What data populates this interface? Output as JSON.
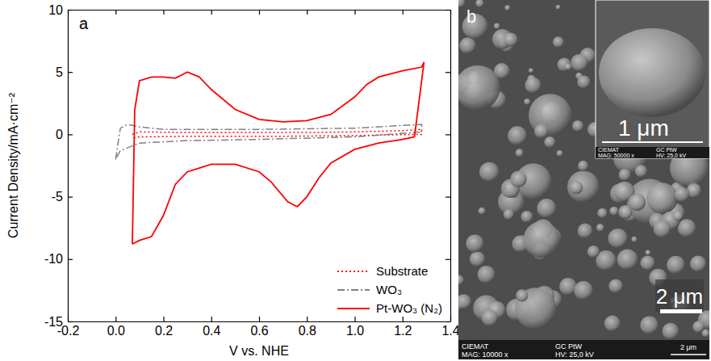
{
  "chart_data": {
    "type": "line",
    "panel_label": "a",
    "x_label": "V vs. NHE",
    "y_label": "Current Density/mA·cm⁻²",
    "xlim": [
      -0.2,
      1.4
    ],
    "xticks": [
      -0.2,
      {
        "value": 0.0,
        "label": "0.0"
      },
      0.2,
      0.4,
      0.6,
      0.8,
      {
        "value": 1.0,
        "label": "1.0"
      },
      1.2,
      1.4
    ],
    "ylim": [
      -15,
      10
    ],
    "yticks": [
      -15,
      -10,
      -5,
      0,
      5,
      10
    ],
    "grid": false,
    "legend": "lower right",
    "series": [
      {
        "name": "Substrate",
        "color": "#ff0000",
        "line_style": "dotted",
        "x": [
          0.07,
          0.1,
          0.3,
          0.5,
          0.8,
          1.0,
          1.2,
          1.28,
          1.28,
          1.1,
          1.0,
          0.7,
          0.5,
          0.3,
          0.1,
          0.07
        ],
        "values": [
          0.0,
          0.2,
          0.15,
          0.15,
          0.15,
          0.2,
          0.3,
          0.4,
          0.0,
          -0.05,
          -0.1,
          -0.15,
          -0.15,
          -0.15,
          -0.2,
          -0.3
        ]
      },
      {
        "name": "WO₃",
        "color": "#808080",
        "line_style": "dashdot",
        "x": [
          0.0,
          0.02,
          0.05,
          0.1,
          0.2,
          0.6,
          1.0,
          1.28,
          1.28,
          1.0,
          0.6,
          0.3,
          0.1,
          0.02,
          0.0
        ],
        "values": [
          -2.0,
          0.5,
          0.8,
          0.6,
          0.4,
          0.4,
          0.5,
          0.8,
          0.2,
          -0.2,
          -0.4,
          -0.5,
          -0.7,
          -1.3,
          -2.0
        ]
      },
      {
        "name": "Pt-WO₃ (N₂)",
        "color": "#ff0000",
        "line_style": "solid",
        "x": [
          0.07,
          0.08,
          0.1,
          0.15,
          0.2,
          0.25,
          0.3,
          0.35,
          0.4,
          0.5,
          0.6,
          0.7,
          0.8,
          0.9,
          1.0,
          1.05,
          1.1,
          1.2,
          1.28,
          1.29,
          1.25,
          1.2,
          1.1,
          1.0,
          0.9,
          0.85,
          0.8,
          0.76,
          0.72,
          0.65,
          0.6,
          0.5,
          0.4,
          0.3,
          0.25,
          0.2,
          0.15,
          0.1,
          0.07
        ],
        "values": [
          -8.8,
          2.0,
          4.3,
          4.6,
          4.6,
          4.5,
          5.0,
          4.6,
          3.6,
          2.0,
          1.2,
          1.0,
          1.1,
          1.6,
          3.0,
          4.0,
          4.6,
          5.1,
          5.4,
          5.8,
          -0.2,
          -0.4,
          -0.7,
          -1.2,
          -2.3,
          -3.5,
          -5.0,
          -5.8,
          -5.4,
          -3.8,
          -3.0,
          -2.4,
          -2.4,
          -3.0,
          -4.0,
          -6.5,
          -8.2,
          -8.5,
          -8.8
        ]
      }
    ]
  },
  "image_panel": {
    "label": "b",
    "scale_bar": "2 μm",
    "inset_scale_bar": "1 μm",
    "footer": {
      "lab": "CIEMAT",
      "magnification": "MAG: 10000 x",
      "sample": "GC PtW",
      "voltage": "HV: 25,0 kV",
      "scale": "2 μm"
    },
    "inset_footer": {
      "lab": "CIEMAT",
      "magnification": "MAG: 50000 x",
      "sample": "GC PtW",
      "voltage": "HV: 25,0 kV"
    }
  }
}
